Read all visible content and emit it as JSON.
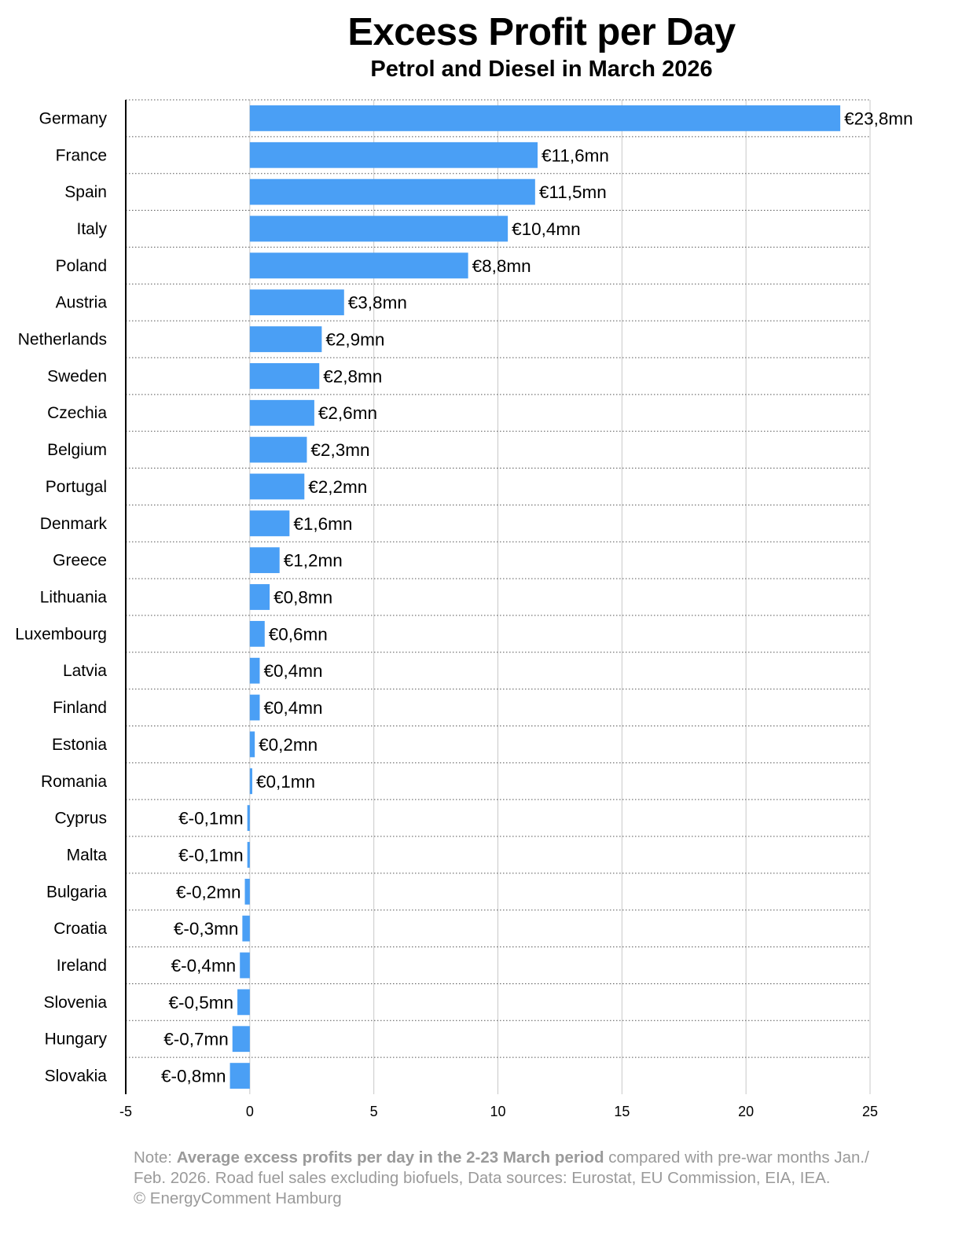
{
  "chart_data": {
    "type": "bar",
    "orientation": "horizontal",
    "title": "Excess Profit per Day",
    "subtitle": "Petrol and Diesel in March 2026",
    "categories": [
      "Germany",
      "France",
      "Spain",
      "Italy",
      "Poland",
      "Austria",
      "Netherlands",
      "Sweden",
      "Czechia",
      "Belgium",
      "Portugal",
      "Denmark",
      "Greece",
      "Lithuania",
      "Luxembourg",
      "Latvia",
      "Finland",
      "Estonia",
      "Romania",
      "Cyprus",
      "Malta",
      "Bulgaria",
      "Croatia",
      "Ireland",
      "Slovenia",
      "Hungary",
      "Slovakia"
    ],
    "values": [
      23.8,
      11.6,
      11.5,
      10.4,
      8.8,
      3.8,
      2.9,
      2.8,
      2.6,
      2.3,
      2.2,
      1.6,
      1.2,
      0.8,
      0.6,
      0.4,
      0.4,
      0.2,
      0.1,
      -0.1,
      -0.1,
      -0.2,
      -0.3,
      -0.4,
      -0.5,
      -0.7,
      -0.8
    ],
    "data_labels": [
      "€23,8mn",
      "€11,6mn",
      "€11,5mn",
      "€10,4mn",
      "€8,8mn",
      "€3,8mn",
      "€2,9mn",
      "€2,8mn",
      "€2,6mn",
      "€2,3mn",
      "€2,2mn",
      "€1,6mn",
      "€1,2mn",
      "€0,8mn",
      "€0,6mn",
      "€0,4mn",
      "€0,4mn",
      "€0,2mn",
      "€0,1mn",
      "€-0,1mn",
      "€-0,1mn",
      "€-0,2mn",
      "€-0,3mn",
      "€-0,4mn",
      "€-0,5mn",
      "€-0,7mn",
      "€-0,8mn"
    ],
    "x_ticks": [
      "-5",
      "0",
      "5",
      "10",
      "15",
      "20",
      "25"
    ],
    "xlim": [
      -5,
      25
    ],
    "xlabel": "",
    "ylabel": "",
    "grid": "vertical solid lines, horizontal dotted row separators",
    "legend": "none",
    "bar_color": "#4a9ff5"
  },
  "note": {
    "prefix": "Note: ",
    "bold": "Average excess profits per day in the 2-23 March period",
    "line1_rest": " compared with pre-war months Jan./",
    "line2": "Feb. 2026. Road fuel sales excluding biofuels,  Data sources: Eurostat, EU Commission, EIA, IEA.",
    "line3": "© EnergyComment Hamburg"
  },
  "colors": {
    "bar": "#4a9ff5",
    "grid": "#c8c8c8",
    "axis": "#000000",
    "note_text": "#9a9a9a"
  }
}
